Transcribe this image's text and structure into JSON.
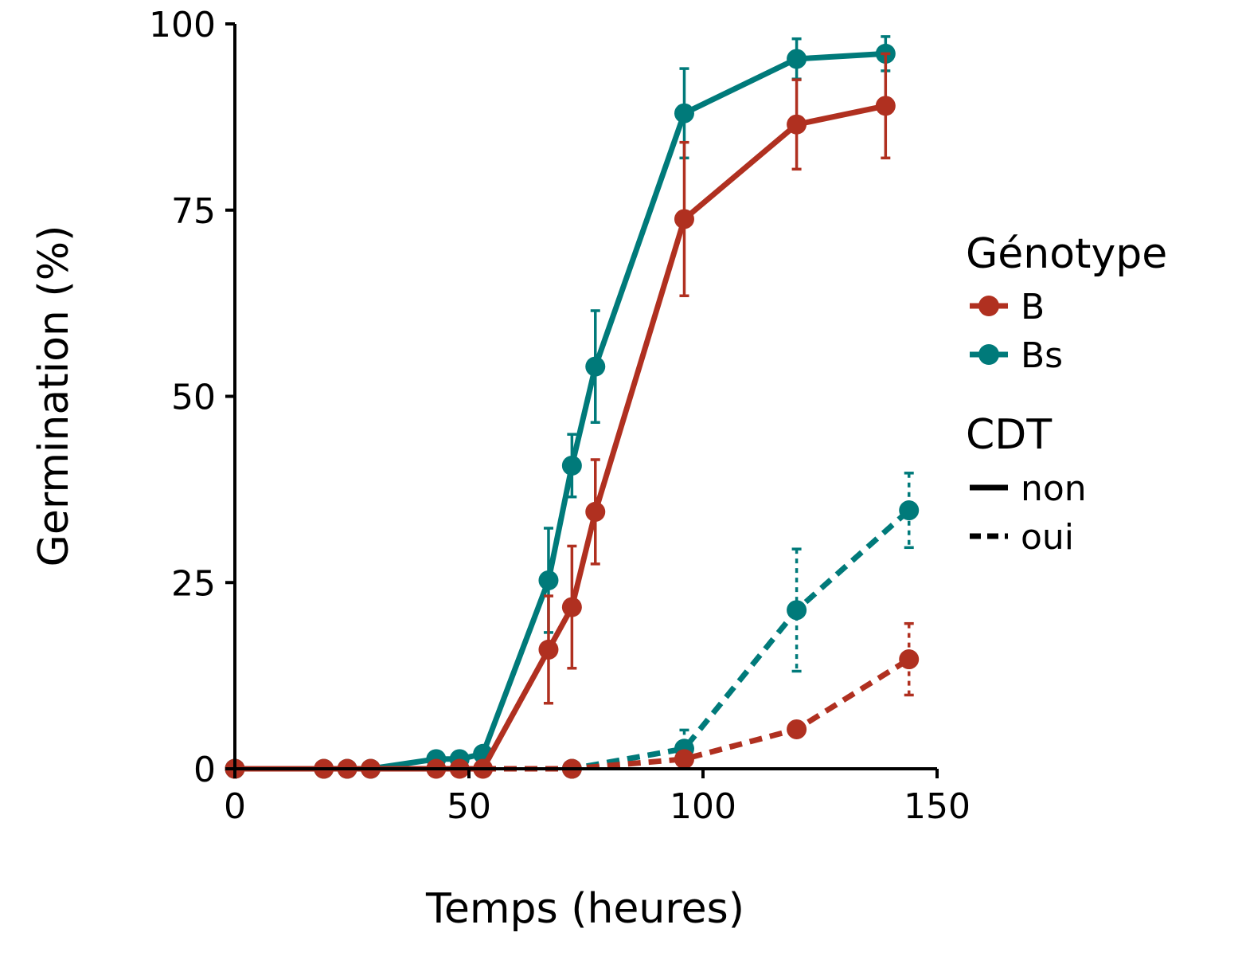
{
  "chart_data": {
    "type": "line",
    "xlabel": "Temps (heures)",
    "ylabel": "Germination (%)",
    "xlim": [
      0,
      150
    ],
    "ylim": [
      0,
      100
    ],
    "xticks": [
      0,
      50,
      100,
      150
    ],
    "yticks": [
      0,
      25,
      50,
      75,
      100
    ],
    "grid": false,
    "legend_position": "right",
    "colors": {
      "B": "#b03020",
      "Bs": "#007a7a"
    },
    "legend": {
      "genotype_title": "Génotype",
      "genotype_entries": [
        "B",
        "Bs"
      ],
      "cdt_title": "CDT",
      "cdt_entries": [
        "non",
        "oui"
      ]
    },
    "series": [
      {
        "genotype": "Bs",
        "cdt": "non",
        "points": [
          {
            "x": 0,
            "y": 0
          },
          {
            "x": 19,
            "y": 0
          },
          {
            "x": 24,
            "y": 0
          },
          {
            "x": 29,
            "y": 0
          },
          {
            "x": 43,
            "y": 1.3
          },
          {
            "x": 48,
            "y": 1.3
          },
          {
            "x": 53,
            "y": 2
          },
          {
            "x": 67,
            "y": 25.3,
            "err": 7
          },
          {
            "x": 72,
            "y": 40.7,
            "err": 4.2
          },
          {
            "x": 77,
            "y": 54,
            "err": 7.5
          },
          {
            "x": 96,
            "y": 88,
            "err": 6
          },
          {
            "x": 120,
            "y": 95.3,
            "err": 2.7
          },
          {
            "x": 139,
            "y": 96,
            "err": 2.3
          }
        ]
      },
      {
        "genotype": "B",
        "cdt": "non",
        "points": [
          {
            "x": 0,
            "y": 0
          },
          {
            "x": 19,
            "y": 0
          },
          {
            "x": 24,
            "y": 0
          },
          {
            "x": 29,
            "y": 0
          },
          {
            "x": 43,
            "y": 0
          },
          {
            "x": 48,
            "y": 0
          },
          {
            "x": 53,
            "y": 0
          },
          {
            "x": 67,
            "y": 16,
            "err": 7.2
          },
          {
            "x": 72,
            "y": 21.7,
            "err": 8.2
          },
          {
            "x": 77,
            "y": 34.5,
            "err": 7
          },
          {
            "x": 96,
            "y": 73.8,
            "err": 10.3
          },
          {
            "x": 120,
            "y": 86.5,
            "err": 6
          },
          {
            "x": 139,
            "y": 89,
            "err": 7
          }
        ]
      },
      {
        "genotype": "Bs",
        "cdt": "oui",
        "points": [
          {
            "x": 0,
            "y": 0
          },
          {
            "x": 72,
            "y": 0
          },
          {
            "x": 96,
            "y": 2.7,
            "err": 2.5
          },
          {
            "x": 120,
            "y": 21.3,
            "err": 8.2
          },
          {
            "x": 144,
            "y": 34.7,
            "err": 5
          }
        ]
      },
      {
        "genotype": "B",
        "cdt": "oui",
        "points": [
          {
            "x": 0,
            "y": 0
          },
          {
            "x": 72,
            "y": 0
          },
          {
            "x": 96,
            "y": 1.3
          },
          {
            "x": 120,
            "y": 5.3
          },
          {
            "x": 144,
            "y": 14.7,
            "err": 4.8
          }
        ]
      }
    ]
  }
}
